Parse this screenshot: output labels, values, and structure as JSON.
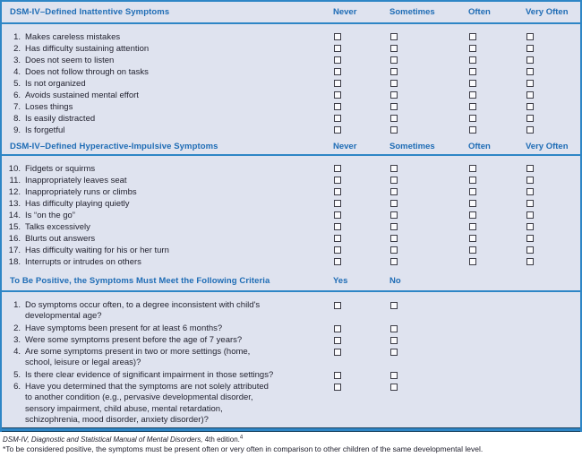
{
  "colors": {
    "accent": "#1e6cb5",
    "rule": "#2e86c6",
    "bg": "#dfe3ef",
    "line_dark": "#17415f",
    "text": "#232330",
    "cb_border": "#3c3c46",
    "cb_fill": "#fbfbfd"
  },
  "checkbox": {
    "glyph": "empty-square",
    "state": "unchecked"
  },
  "sections": [
    {
      "title": "DSM-IV–Defined Inattentive Symptoms",
      "columns": [
        "Never",
        "Sometimes",
        "Often",
        "Very Often"
      ],
      "items": [
        {
          "num": "1.",
          "lines": [
            "Makes careless mistakes"
          ]
        },
        {
          "num": "2.",
          "lines": [
            "Has difficulty sustaining attention"
          ]
        },
        {
          "num": "3.",
          "lines": [
            "Does not seem to listen"
          ]
        },
        {
          "num": "4.",
          "lines": [
            "Does not follow through on tasks"
          ]
        },
        {
          "num": "5.",
          "lines": [
            "Is not organized"
          ]
        },
        {
          "num": "6.",
          "lines": [
            "Avoids sustained mental effort"
          ]
        },
        {
          "num": "7.",
          "lines": [
            "Loses things"
          ]
        },
        {
          "num": "8.",
          "lines": [
            "Is easily distracted"
          ]
        },
        {
          "num": "9.",
          "lines": [
            "Is forgetful"
          ]
        }
      ]
    },
    {
      "title": "DSM-IV–Defined Hyperactive-Impulsive Symptoms",
      "columns": [
        "Never",
        "Sometimes",
        "Often",
        "Very Often"
      ],
      "items": [
        {
          "num": "10.",
          "lines": [
            "Fidgets or squirms"
          ]
        },
        {
          "num": "11.",
          "lines": [
            "Inappropriately leaves seat"
          ]
        },
        {
          "num": "12.",
          "lines": [
            "Inappropriately runs or climbs"
          ]
        },
        {
          "num": "13.",
          "lines": [
            "Has difficulty playing quietly"
          ]
        },
        {
          "num": "14.",
          "lines": [
            "Is “on the go”"
          ]
        },
        {
          "num": "15.",
          "lines": [
            "Talks excessively"
          ]
        },
        {
          "num": "16.",
          "lines": [
            "Blurts out answers"
          ]
        },
        {
          "num": "17.",
          "lines": [
            "Has difficulty waiting for his or her turn"
          ]
        },
        {
          "num": "18.",
          "lines": [
            "Interrupts or intrudes on others"
          ]
        }
      ]
    },
    {
      "title": "To Be Positive, the Symptoms Must Meet the Following Criteria",
      "columns": [
        "Yes",
        "No"
      ],
      "items": [
        {
          "num": "1.",
          "lines": [
            "Do symptoms occur often, to a degree inconsistent with child's",
            "developmental age?"
          ]
        },
        {
          "num": "2.",
          "lines": [
            "Have symptoms been present for at least 6 months?"
          ]
        },
        {
          "num": "3.",
          "lines": [
            "Were some symptoms present before the age of 7 years?"
          ]
        },
        {
          "num": "4.",
          "lines": [
            "Are some symptoms present in two or more settings (home,",
            "school, leisure or legal areas)?"
          ]
        },
        {
          "num": "5.",
          "lines": [
            "Is there clear evidence of significant impairment in those settings?"
          ]
        },
        {
          "num": "6.",
          "lines": [
            "Have you determined that the symptoms are not solely attributed",
            "to another condition (e.g., pervasive developmental disorder,",
            "sensory impairment, child abuse, mental retardation,",
            "schizophrenia, mood disorder, anxiety disorder)?"
          ]
        }
      ]
    }
  ],
  "footnotes": {
    "source_italic": "DSM-IV, Diagnostic and Statistical Manual of Mental Disorders,",
    "source_roman": " 4th edition.",
    "source_sup": "4",
    "note": "*To be considered positive, the symptoms must be present often or very often in comparison to other children of the same developmental level."
  }
}
